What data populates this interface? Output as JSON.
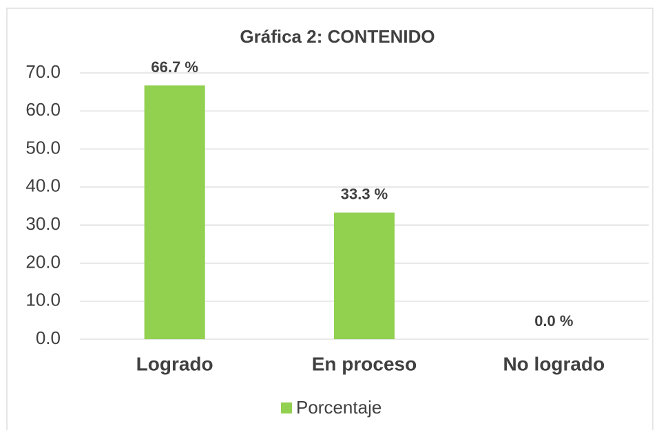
{
  "chart_data": {
    "type": "bar",
    "title": "Gráfica 2: CONTENIDO",
    "categories": [
      "Logrado",
      "En proceso",
      "No logrado"
    ],
    "series": [
      {
        "name": "Porcentaje",
        "color": "#92d050",
        "values": [
          66.7,
          33.3,
          0.0
        ],
        "value_labels": [
          "66.7 %",
          "33.3 %",
          "0.0 %"
        ]
      }
    ],
    "ylim": [
      0,
      70
    ],
    "yticks": [
      {
        "value": 0,
        "label": "0.0"
      },
      {
        "value": 10,
        "label": "10.0"
      },
      {
        "value": 20,
        "label": "20.0"
      },
      {
        "value": 30,
        "label": "30.0"
      },
      {
        "value": 40,
        "label": "40.0"
      },
      {
        "value": 50,
        "label": "50.0"
      },
      {
        "value": 60,
        "label": "60.0"
      },
      {
        "value": 70,
        "label": "70.0"
      }
    ],
    "grid": true,
    "legend": "bottom"
  }
}
